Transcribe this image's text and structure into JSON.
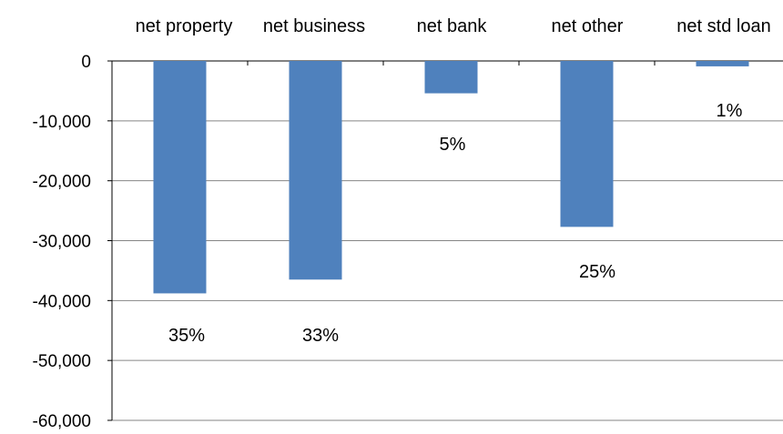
{
  "chart_data": {
    "type": "bar",
    "categories": [
      "net property",
      "net business",
      "net bank",
      "net other",
      "net std loan"
    ],
    "values": [
      -38800,
      -36500,
      -5400,
      -27700,
      -900
    ],
    "data_labels": [
      "35%",
      "33%",
      "5%",
      "25%",
      "1%"
    ],
    "y_ticks": [
      "0",
      "-10,000",
      "-20,000",
      "-30,000",
      "-40,000",
      "-50,000",
      "-60,000"
    ],
    "ylim": [
      -60000,
      0
    ],
    "grid": true,
    "category_axis_position": "top",
    "bar_color": "#4f81bd"
  }
}
